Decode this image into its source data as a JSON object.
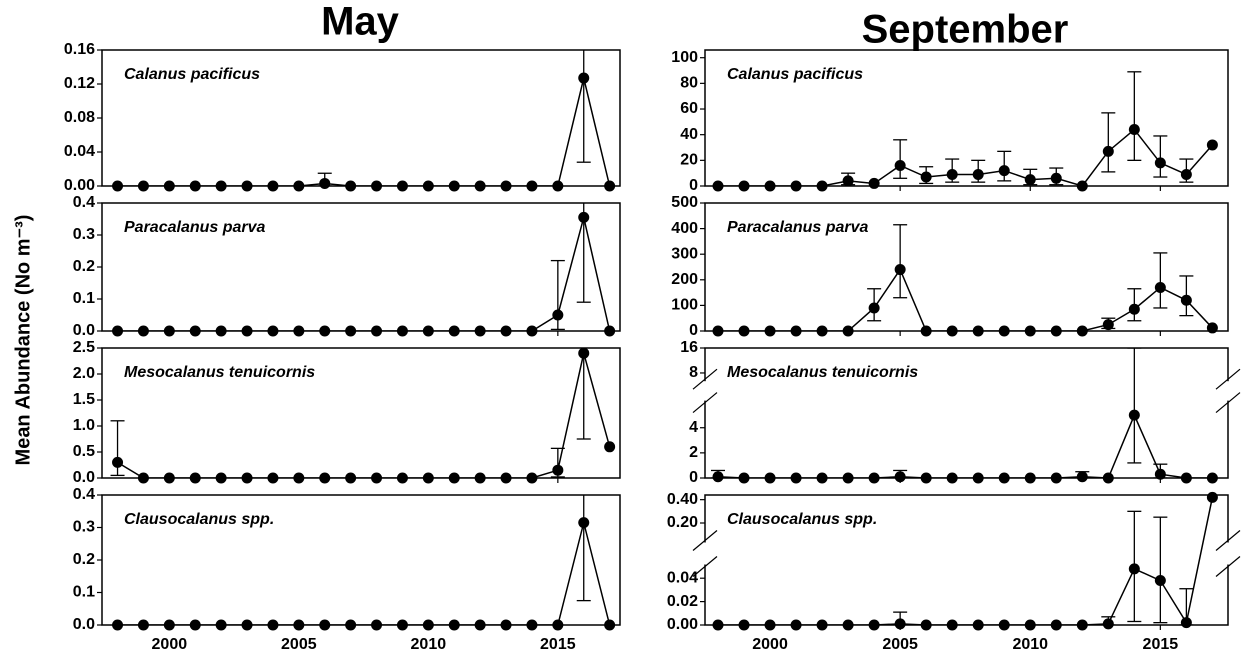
{
  "columns": [
    "May",
    "September"
  ],
  "ylabel": "Mean Abundance (No m⁻³)",
  "chart_data": [
    {
      "type": "line",
      "label": "Calanus pacificus",
      "color": "#000000",
      "x": [
        1998,
        1999,
        2000,
        2001,
        2002,
        2003,
        2004,
        2005,
        2006,
        2007,
        2008,
        2009,
        2010,
        2011,
        2012,
        2013,
        2014,
        2015,
        2016,
        2017
      ],
      "values": [
        0,
        0,
        0,
        0,
        0,
        0,
        0,
        0,
        0.003,
        0,
        0,
        0,
        0,
        0,
        0,
        0,
        0,
        0,
        0.127,
        0
      ],
      "ci_low": [
        null,
        null,
        null,
        null,
        null,
        null,
        null,
        null,
        0,
        null,
        null,
        null,
        null,
        null,
        null,
        null,
        null,
        null,
        0.028,
        null
      ],
      "ci_high": [
        null,
        null,
        null,
        null,
        null,
        null,
        null,
        null,
        0.015,
        null,
        null,
        null,
        null,
        null,
        null,
        null,
        null,
        null,
        0.2,
        null
      ],
      "xlim": [
        1997.4,
        2017.4
      ],
      "xticks": [
        2000,
        2005,
        2010,
        2015
      ],
      "ylim": [
        0,
        0.16
      ],
      "yticks": [
        {
          "value": 0,
          "label": "0.00"
        },
        0.04,
        0.08,
        0.12,
        0.16
      ]
    },
    {
      "type": "line",
      "label": "Paracalanus parva",
      "color": "#000000",
      "x": [
        1998,
        1999,
        2000,
        2001,
        2002,
        2003,
        2004,
        2005,
        2006,
        2007,
        2008,
        2009,
        2010,
        2011,
        2012,
        2013,
        2014,
        2015,
        2016,
        2017
      ],
      "values": [
        0,
        0,
        0,
        0,
        0,
        0,
        0,
        0,
        0,
        0,
        0,
        0,
        0,
        0,
        0,
        0,
        0,
        0.05,
        0.355,
        0
      ],
      "ci_low": [
        null,
        null,
        null,
        null,
        null,
        null,
        null,
        null,
        null,
        null,
        null,
        null,
        null,
        null,
        null,
        null,
        null,
        0.005,
        0.09,
        null
      ],
      "ci_high": [
        null,
        null,
        null,
        null,
        null,
        null,
        null,
        null,
        null,
        null,
        null,
        null,
        null,
        null,
        null,
        null,
        null,
        0.22,
        0.45,
        null
      ],
      "xlim": [
        1997.4,
        2017.4
      ],
      "xticks": [
        2000,
        2005,
        2010,
        2015
      ],
      "ylim": [
        0,
        0.4
      ],
      "yticks": [
        {
          "value": 0,
          "label": "0.0"
        },
        0.1,
        0.2,
        0.3,
        0.4
      ]
    },
    {
      "type": "line",
      "label": "Mesocalanus tenuicornis",
      "color": "#000000",
      "x": [
        1998,
        1999,
        2000,
        2001,
        2002,
        2003,
        2004,
        2005,
        2006,
        2007,
        2008,
        2009,
        2010,
        2011,
        2012,
        2013,
        2014,
        2015,
        2016,
        2017
      ],
      "values": [
        0.3,
        0,
        0,
        0,
        0,
        0,
        0,
        0,
        0,
        0,
        0,
        0,
        0,
        0,
        0,
        0,
        0,
        0.15,
        2.4,
        0.6
      ],
      "ci_low": [
        0.05,
        null,
        null,
        null,
        null,
        null,
        null,
        null,
        null,
        null,
        null,
        null,
        null,
        null,
        null,
        null,
        null,
        0.02,
        0.75,
        null
      ],
      "ci_high": [
        1.1,
        null,
        null,
        null,
        null,
        null,
        null,
        null,
        null,
        null,
        null,
        null,
        null,
        null,
        null,
        null,
        null,
        0.57,
        2.6,
        null
      ],
      "xlim": [
        1997.4,
        2017.4
      ],
      "xticks": [
        2000,
        2005,
        2010,
        2015
      ],
      "ylim": [
        0,
        2.5
      ],
      "yticks": [
        {
          "value": 0,
          "label": "0.0"
        },
        0.5,
        {
          "value": 1,
          "label": "1.0"
        },
        1.5,
        {
          "value": 2,
          "label": "2.0"
        },
        2.5
      ]
    },
    {
      "type": "line",
      "label": "Clausocalanus spp.",
      "color": "#000000",
      "x": [
        1998,
        1999,
        2000,
        2001,
        2002,
        2003,
        2004,
        2005,
        2006,
        2007,
        2008,
        2009,
        2010,
        2011,
        2012,
        2013,
        2014,
        2015,
        2016,
        2017
      ],
      "values": [
        0,
        0,
        0,
        0,
        0,
        0,
        0,
        0,
        0,
        0,
        0,
        0,
        0,
        0,
        0,
        0,
        0,
        0,
        0.315,
        0
      ],
      "ci_low": [
        null,
        null,
        null,
        null,
        null,
        null,
        null,
        null,
        null,
        null,
        null,
        null,
        null,
        null,
        null,
        null,
        null,
        null,
        0.075,
        null
      ],
      "ci_high": [
        null,
        null,
        null,
        null,
        null,
        null,
        null,
        null,
        null,
        null,
        null,
        null,
        null,
        null,
        null,
        null,
        null,
        null,
        0.45,
        null
      ],
      "xlim": [
        1997.4,
        2017.4
      ],
      "xticks": [
        2000,
        2005,
        2010,
        2015
      ],
      "ylim": [
        0,
        0.4
      ],
      "yticks": [
        {
          "value": 0,
          "label": "0.0"
        },
        0.1,
        0.2,
        0.3,
        0.4
      ]
    },
    {
      "type": "line",
      "label": "Calanus pacificus",
      "color": "#000000",
      "x": [
        1998,
        1999,
        2000,
        2001,
        2002,
        2003,
        2004,
        2005,
        2006,
        2007,
        2008,
        2009,
        2010,
        2011,
        2012,
        2013,
        2014,
        2015,
        2016,
        2017
      ],
      "values": [
        0,
        0,
        0,
        0,
        0,
        4,
        2,
        16,
        7,
        9,
        9,
        12,
        5,
        6,
        0,
        27,
        44,
        18,
        9,
        32
      ],
      "ci_low": [
        null,
        null,
        null,
        null,
        null,
        1,
        null,
        6,
        2,
        3,
        3,
        4,
        1,
        1,
        null,
        11,
        20,
        7,
        3,
        null
      ],
      "ci_high": [
        null,
        null,
        null,
        null,
        null,
        10,
        null,
        36,
        15,
        21,
        20,
        27,
        13,
        14,
        null,
        57,
        89,
        39,
        21,
        null
      ],
      "xlim": [
        1997.5,
        2017.6
      ],
      "xticks": [
        2000,
        2005,
        2010,
        2015
      ],
      "ylim": [
        0,
        106
      ],
      "yticks": [
        0,
        20,
        40,
        60,
        80,
        100
      ]
    },
    {
      "type": "line",
      "label": "Paracalanus parva",
      "color": "#000000",
      "x": [
        1998,
        1999,
        2000,
        2001,
        2002,
        2003,
        2004,
        2005,
        2006,
        2007,
        2008,
        2009,
        2010,
        2011,
        2012,
        2013,
        2014,
        2015,
        2016,
        2017
      ],
      "values": [
        0,
        0,
        0,
        0,
        0,
        0,
        90,
        240,
        0,
        0,
        0,
        0,
        0,
        0,
        0,
        25,
        85,
        170,
        120,
        12
      ],
      "ci_low": [
        null,
        null,
        null,
        null,
        null,
        null,
        40,
        130,
        null,
        null,
        null,
        null,
        null,
        null,
        null,
        10,
        40,
        90,
        60,
        null
      ],
      "ci_high": [
        null,
        null,
        null,
        null,
        null,
        null,
        165,
        415,
        null,
        null,
        null,
        null,
        null,
        null,
        null,
        50,
        165,
        305,
        215,
        null
      ],
      "xlim": [
        1997.5,
        2017.6
      ],
      "xticks": [
        2000,
        2005,
        2010,
        2015
      ],
      "ylim": [
        0,
        500
      ],
      "yticks": [
        0,
        100,
        200,
        300,
        400,
        500
      ]
    },
    {
      "type": "line",
      "label": "Mesocalanus tenuicornis",
      "color": "#000000",
      "x": [
        1998,
        1999,
        2000,
        2001,
        2002,
        2003,
        2004,
        2005,
        2006,
        2007,
        2008,
        2009,
        2010,
        2011,
        2012,
        2013,
        2014,
        2015,
        2016,
        2017
      ],
      "values": [
        0.1,
        0,
        0,
        0,
        0,
        0,
        0,
        0.1,
        0,
        0,
        0,
        0,
        0,
        0,
        0.1,
        0,
        5,
        0.3,
        0,
        0
      ],
      "ci_low": [
        0,
        null,
        null,
        null,
        null,
        null,
        null,
        0,
        null,
        null,
        null,
        null,
        null,
        null,
        0,
        null,
        1.2,
        0,
        null,
        null
      ],
      "ci_high": [
        0.6,
        null,
        null,
        null,
        null,
        null,
        null,
        0.6,
        null,
        null,
        null,
        null,
        null,
        null,
        0.5,
        null,
        16,
        1.1,
        null,
        null
      ],
      "xlim": [
        1997.5,
        2017.6
      ],
      "xticks": [
        2000,
        2005,
        2010,
        2015
      ],
      "ylim": [
        0,
        16
      ],
      "ysegments": [
        [
          0,
          6
        ],
        [
          6,
          16
        ]
      ],
      "yticks": [
        0,
        2,
        4,
        8,
        16
      ]
    },
    {
      "type": "line",
      "label": "Clausocalanus spp.",
      "color": "#000000",
      "x": [
        1998,
        1999,
        2000,
        2001,
        2002,
        2003,
        2004,
        2005,
        2006,
        2007,
        2008,
        2009,
        2010,
        2011,
        2012,
        2013,
        2014,
        2015,
        2016,
        2017
      ],
      "values": [
        0,
        0,
        0,
        0,
        0,
        0,
        0,
        0.001,
        0,
        0,
        0,
        0,
        0,
        0,
        0,
        0.001,
        0.048,
        0.038,
        0.002,
        0.42
      ],
      "ci_low": [
        null,
        null,
        null,
        null,
        null,
        null,
        null,
        0,
        null,
        null,
        null,
        null,
        null,
        null,
        null,
        0,
        0.003,
        0.002,
        0,
        null
      ],
      "ci_high": [
        null,
        null,
        null,
        null,
        null,
        null,
        null,
        0.011,
        null,
        null,
        null,
        null,
        null,
        null,
        null,
        0.007,
        0.3,
        0.25,
        0.031,
        null
      ],
      "xlim": [
        1997.5,
        2017.6
      ],
      "xticks": [
        2000,
        2005,
        2010,
        2015
      ],
      "ylim": [
        0,
        0.44
      ],
      "ysegments": [
        [
          0,
          0.05
        ],
        [
          0.05,
          0.44
        ]
      ],
      "yticks": [
        {
          "value": 0,
          "label": "0.00"
        },
        0.02,
        0.04,
        {
          "value": 0.2,
          "label": "0.20"
        },
        {
          "value": 0.4,
          "label": "0.40"
        }
      ]
    }
  ]
}
